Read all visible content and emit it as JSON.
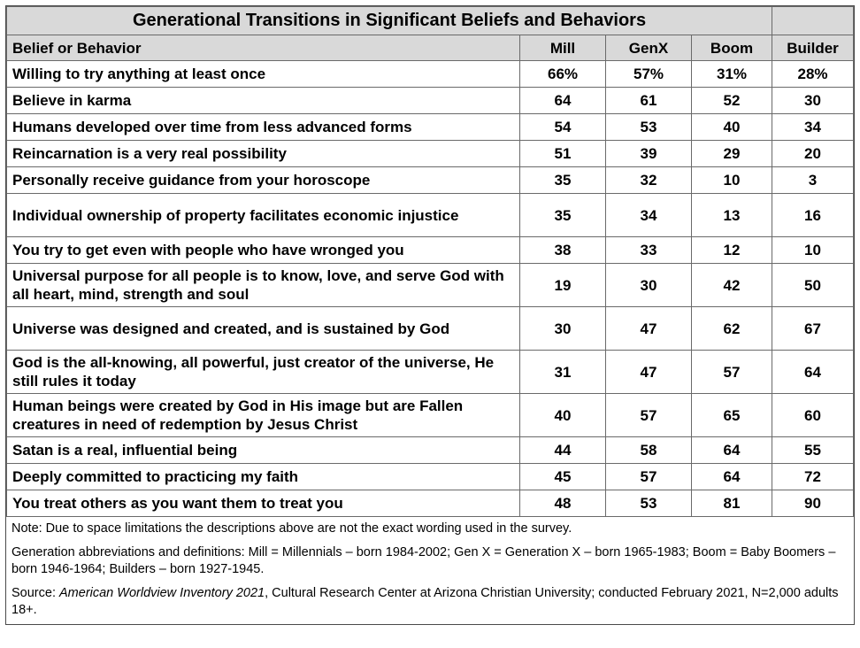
{
  "title": "Generational Transitions in Significant Beliefs and Behaviors",
  "headers": [
    "Belief or Behavior",
    "Mill",
    "GenX",
    "Boom",
    "Builder"
  ],
  "rows": [
    {
      "label": "Willing to try anything at least once",
      "values": [
        "66%",
        "57%",
        "31%",
        "28%"
      ]
    },
    {
      "label": "Believe in karma",
      "values": [
        "64",
        "61",
        "52",
        "30"
      ]
    },
    {
      "label": "Humans developed over time from less advanced forms",
      "values": [
        "54",
        "53",
        "40",
        "34"
      ]
    },
    {
      "label": "Reincarnation is a very real possibility",
      "values": [
        "51",
        "39",
        "29",
        "20"
      ]
    },
    {
      "label": "Personally receive guidance from your horoscope",
      "values": [
        "35",
        "32",
        "10",
        "3"
      ]
    },
    {
      "label": "Individual ownership of property facilitates economic injustice",
      "values": [
        "35",
        "34",
        "13",
        "16"
      ]
    },
    {
      "label": "You try to get even with people who have wronged you",
      "values": [
        "38",
        "33",
        "12",
        "10"
      ]
    },
    {
      "label": "Universal purpose for all people is to know, love, and serve God with all heart, mind, strength and soul",
      "values": [
        "19",
        "30",
        "42",
        "50"
      ]
    },
    {
      "label": "Universe was designed and created, and is sustained by God",
      "values": [
        "30",
        "47",
        "62",
        "67"
      ]
    },
    {
      "label": "God is the all-knowing, all powerful, just creator of the universe, He still rules it today",
      "values": [
        "31",
        "47",
        "57",
        "64"
      ]
    },
    {
      "label": "Human beings were created by God in His image but are Fallen creatures in need of redemption by Jesus Christ",
      "values": [
        "40",
        "57",
        "65",
        "60"
      ]
    },
    {
      "label": "Satan is a real, influential being",
      "values": [
        "44",
        "58",
        "64",
        "55"
      ]
    },
    {
      "label": "Deeply committed to practicing my faith",
      "values": [
        "45",
        "57",
        "64",
        "72"
      ]
    },
    {
      "label": "You treat others as you want them to treat you",
      "values": [
        "48",
        "53",
        "81",
        "90"
      ]
    }
  ],
  "notes": {
    "note": "Note: Due to space limitations the descriptions above are not the exact wording used in the survey.",
    "definitions": "Generation abbreviations and definitions: Mill = Millennials – born 1984-2002; Gen X = Generation X – born 1965-1983; Boom = Baby Boomers – born 1946-1964; Builders – born 1927-1945.",
    "source_prefix": "Source: ",
    "source_title": "American Worldview Inventory 2021",
    "source_rest": ", Cultural Research Center at Arizona Christian University; conducted February 2021, N=2,000 adults 18+."
  }
}
